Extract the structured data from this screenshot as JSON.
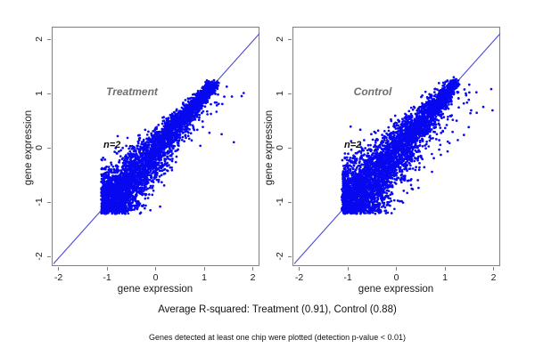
{
  "figure": {
    "background": "#ffffff"
  },
  "captions": {
    "r_squared": "Average R-squared: Treatment (0.91), Control (0.88)",
    "note": "Genes detected at least one chip were plotted (detection p-value < 0.01)"
  },
  "colors": {
    "point": "#0808f0",
    "ref_line": "#4747de",
    "frame": "#808080",
    "axis_text": "#1a1a1a",
    "panel_title": "#6e6e6e",
    "annotation": "#0d0d0d"
  },
  "chart_data": [
    {
      "type": "scatter",
      "title": "Treatment",
      "annotation": "n=2",
      "xlabel": "gene expression",
      "ylabel": "gene expression",
      "x_ticks": [
        -2,
        -1,
        0,
        1,
        2
      ],
      "y_ticks": [
        -2,
        -1,
        0,
        1,
        2
      ],
      "xlim": [
        -2.15,
        2.15
      ],
      "ylim": [
        -2.2,
        2.25
      ],
      "ref_line": "y = x identity line",
      "avg_r_squared": 0.91,
      "legend": "none",
      "grid": false,
      "cloud": {
        "description": "dense blue cloud of gene expression replicate pairs along diagonal from (-1.05,-1.05) to (1.2,1.2)",
        "count": 4000,
        "seed": 42,
        "t_min": -1.05,
        "t_max": 1.2,
        "density_power": 1.5,
        "noise_base": 0.045,
        "noise_slope": 0.21,
        "outlier_frac": 0.035,
        "outlier_push": 0.38,
        "outlier_drop": 0.15,
        "x_floor": -1.14,
        "y_floor": -1.2
      }
    },
    {
      "type": "scatter",
      "title": "Control",
      "annotation": "n=2",
      "xlabel": "gene expression",
      "ylabel": "gene expression",
      "x_ticks": [
        -2,
        -1,
        0,
        1,
        2
      ],
      "y_ticks": [
        -2,
        -1,
        0,
        1,
        2
      ],
      "xlim": [
        -2.15,
        2.15
      ],
      "ylim": [
        -2.2,
        2.25
      ],
      "ref_line": "y = x identity line",
      "avg_r_squared": 0.88,
      "legend": "none",
      "grid": false,
      "cloud": {
        "description": "dense blue cloud, slightly wider spread than Treatment with more outliers right of the diagonal",
        "count": 4300,
        "seed": 1337,
        "t_min": -1.05,
        "t_max": 1.2,
        "density_power": 1.5,
        "noise_base": 0.05,
        "noise_slope": 0.26,
        "outlier_frac": 0.055,
        "outlier_push": 0.42,
        "outlier_drop": 0.18,
        "x_floor": -1.14,
        "y_floor": -1.2
      }
    }
  ]
}
